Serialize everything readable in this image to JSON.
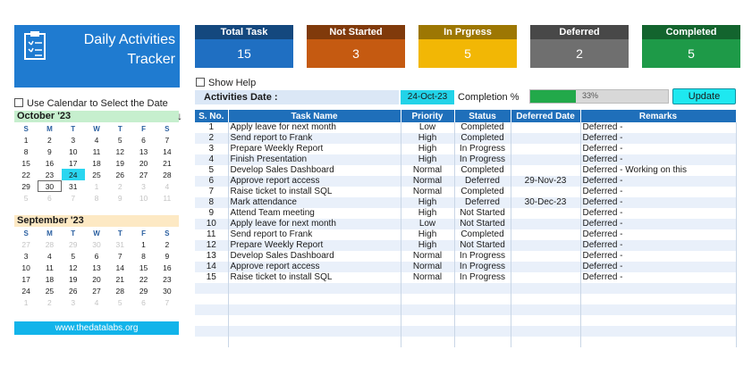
{
  "app": {
    "title_line1": "Daily Activities",
    "title_line2": "Tracker"
  },
  "cards": [
    {
      "label": "Total Task",
      "value": "15",
      "color": "#1f6fc2"
    },
    {
      "label": "Not Started",
      "value": "3",
      "color": "#c55a11"
    },
    {
      "label": "In Prgress",
      "value": "5",
      "color": "#f2b705"
    },
    {
      "label": "Deferred",
      "value": "2",
      "color": "#6f6f6f"
    },
    {
      "label": "Completed",
      "value": "5",
      "color": "#1e9a48"
    }
  ],
  "options": {
    "show_help": "Show Help",
    "use_calendar": "Use Calendar to Select the Date"
  },
  "activities": {
    "label": "Activities Date :",
    "date": "24-Oct-23"
  },
  "completion": {
    "label": "Completion %",
    "percent_text": "33%",
    "fraction": 0.33
  },
  "update_label": "Update",
  "calendars": [
    {
      "month": "October '23",
      "header_color": "#c6efce",
      "weekdays": [
        "S",
        "M",
        "T",
        "W",
        "T",
        "F",
        "S"
      ],
      "weeks": [
        [
          "1",
          "2",
          "3",
          "4",
          "5",
          "6",
          "7"
        ],
        [
          "8",
          "9",
          "10",
          "11",
          "12",
          "13",
          "14"
        ],
        [
          "15",
          "16",
          "17",
          "18",
          "19",
          "20",
          "21"
        ],
        [
          "22",
          "23",
          "24",
          "25",
          "26",
          "27",
          "28"
        ],
        [
          "29",
          "30",
          "31",
          "1",
          "2",
          "3",
          "4"
        ],
        [
          "5",
          "6",
          "7",
          "8",
          "9",
          "10",
          "11"
        ]
      ],
      "other_cells": [
        "4-3",
        "4-4",
        "4-5",
        "4-6",
        "5-0",
        "5-1",
        "5-2",
        "5-3",
        "5-4",
        "5-5",
        "5-6"
      ],
      "today_cell": "3-2",
      "selected_cell": "4-1",
      "extra": "↓"
    },
    {
      "month": "September '23",
      "header_color": "#fde9c4",
      "weekdays": [
        "S",
        "M",
        "T",
        "W",
        "T",
        "F",
        "S"
      ],
      "weeks": [
        [
          "27",
          "28",
          "29",
          "30",
          "31",
          "1",
          "2"
        ],
        [
          "3",
          "4",
          "5",
          "6",
          "7",
          "8",
          "9"
        ],
        [
          "10",
          "11",
          "12",
          "13",
          "14",
          "15",
          "16"
        ],
        [
          "17",
          "18",
          "19",
          "20",
          "21",
          "22",
          "23"
        ],
        [
          "24",
          "25",
          "26",
          "27",
          "28",
          "29",
          "30"
        ],
        [
          "1",
          "2",
          "3",
          "4",
          "5",
          "6",
          "7"
        ]
      ],
      "other_cells": [
        "0-0",
        "0-1",
        "0-2",
        "0-3",
        "0-4",
        "5-0",
        "5-1",
        "5-2",
        "5-3",
        "5-4",
        "5-5",
        "5-6"
      ],
      "today_cell": "",
      "selected_cell": "",
      "extra": ""
    }
  ],
  "website": "www.thedatalabs.org",
  "table": {
    "headers": [
      "S. No.",
      "Task Name",
      "Priority",
      "Status",
      "Deferred Date",
      "Remarks"
    ],
    "rows": [
      [
        "1",
        "Apply leave for next month",
        "Low",
        "Completed",
        "",
        "Deferred -"
      ],
      [
        "2",
        "Send report to Frank",
        "High",
        "Completed",
        "",
        "Deferred -"
      ],
      [
        "3",
        "Prepare Weekly Report",
        "High",
        "In Progress",
        "",
        "Deferred -"
      ],
      [
        "4",
        "Finish Presentation",
        "High",
        "In Progress",
        "",
        "Deferred -"
      ],
      [
        "5",
        "Develop Sales Dashboard",
        "Normal",
        "Completed",
        "",
        "Deferred - Working on this"
      ],
      [
        "6",
        "Approve report access",
        "Normal",
        "Deferred",
        "29-Nov-23",
        "Deferred -"
      ],
      [
        "7",
        "Raise ticket to install SQL",
        "Normal",
        "Completed",
        "",
        "Deferred -"
      ],
      [
        "8",
        "Mark attendance",
        "High",
        "Deferred",
        "30-Dec-23",
        "Deferred -"
      ],
      [
        "9",
        "Attend Team meeting",
        "High",
        "Not Started",
        "",
        "Deferred -"
      ],
      [
        "10",
        "Apply leave for next month",
        "Low",
        "Not Started",
        "",
        "Deferred -"
      ],
      [
        "11",
        "Send report to Frank",
        "High",
        "Completed",
        "",
        "Deferred -"
      ],
      [
        "12",
        "Prepare Weekly Report",
        "High",
        "Not Started",
        "",
        "Deferred -"
      ],
      [
        "13",
        "Develop Sales Dashboard",
        "Normal",
        "In Progress",
        "",
        "Deferred -"
      ],
      [
        "14",
        "Approve report access",
        "Normal",
        "In Progress",
        "",
        "Deferred -"
      ],
      [
        "15",
        "Raise ticket to install SQL",
        "Normal",
        "In Progress",
        "",
        "Deferred -"
      ],
      [
        "",
        "",
        "",
        "",
        "",
        ""
      ],
      [
        "",
        "",
        "",
        "",
        "",
        ""
      ],
      [
        "",
        "",
        "",
        "",
        "",
        ""
      ],
      [
        "",
        "",
        "",
        "",
        "",
        ""
      ],
      [
        "",
        "",
        "",
        "",
        "",
        ""
      ],
      [
        "",
        "",
        "",
        "",
        "",
        ""
      ]
    ]
  }
}
